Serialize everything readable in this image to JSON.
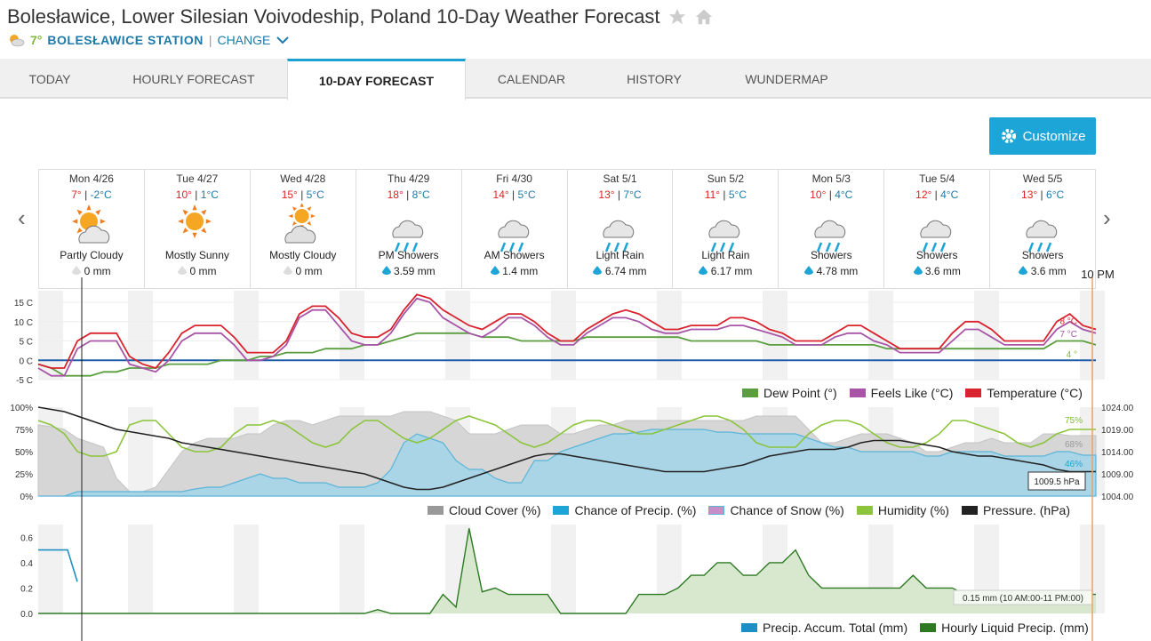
{
  "header": {
    "title": "Bolesławice, Lower Silesian Voivodeship, Poland 10-Day Weather Forecast",
    "current_temp": "7°",
    "station": "BOLESŁAWICE STATION",
    "separator": "|",
    "change": "CHANGE"
  },
  "tabs": [
    {
      "label": "TODAY"
    },
    {
      "label": "HOURLY FORECAST"
    },
    {
      "label": "10-DAY FORECAST"
    },
    {
      "label": "CALENDAR"
    },
    {
      "label": "HISTORY"
    },
    {
      "label": "WUNDERMAP"
    }
  ],
  "customize_label": "Customize",
  "days": [
    {
      "date": "Mon 4/26",
      "hi": "7°",
      "lo": "-2°C",
      "cond": "Partly Cloudy",
      "precip": "0 mm",
      "icon": "partly-cloudy-icon"
    },
    {
      "date": "Tue 4/27",
      "hi": "10°",
      "lo": "1°C",
      "cond": "Mostly Sunny",
      "precip": "0 mm",
      "icon": "sunny-icon"
    },
    {
      "date": "Wed 4/28",
      "hi": "15°",
      "lo": "5°C",
      "cond": "Mostly Cloudy",
      "precip": "0 mm",
      "icon": "mostly-cloudy-icon"
    },
    {
      "date": "Thu 4/29",
      "hi": "18°",
      "lo": "8°C",
      "cond": "PM Showers",
      "precip": "3.59 mm",
      "icon": "rain-icon"
    },
    {
      "date": "Fri 4/30",
      "hi": "14°",
      "lo": "5°C",
      "cond": "AM Showers",
      "precip": "1.4 mm",
      "icon": "rain-icon"
    },
    {
      "date": "Sat 5/1",
      "hi": "13°",
      "lo": "7°C",
      "cond": "Light Rain",
      "precip": "6.74 mm",
      "icon": "rain-icon"
    },
    {
      "date": "Sun 5/2",
      "hi": "11°",
      "lo": "5°C",
      "cond": "Light Rain",
      "precip": "6.17 mm",
      "icon": "rain-icon"
    },
    {
      "date": "Mon 5/3",
      "hi": "10°",
      "lo": "4°C",
      "cond": "Showers",
      "precip": "4.78 mm",
      "icon": "rain-icon"
    },
    {
      "date": "Tue 5/4",
      "hi": "12°",
      "lo": "4°C",
      "cond": "Showers",
      "precip": "3.6 mm",
      "icon": "rain-icon"
    },
    {
      "date": "Wed 5/5",
      "hi": "13°",
      "lo": "6°C",
      "cond": "Showers",
      "precip": "3.6 mm",
      "icon": "rain-icon"
    }
  ],
  "time_marker": "10 PM",
  "colors": {
    "temperature": "#d9232e",
    "feels_like": "#a855a8",
    "dew_point": "#5a9e3f",
    "cloud": "#bbbbbb",
    "precip_chance": "#5db5d8",
    "humidity": "#8cc43c",
    "pressure": "#222222",
    "accum": "#1e8fc4",
    "liquid": "#2d7a23"
  },
  "chart_data": [
    {
      "type": "line",
      "yticks": [
        "15 C",
        "10 C",
        "5 C",
        "0 C",
        "-5 C"
      ],
      "ylim": [
        -5,
        18
      ],
      "series": [
        {
          "name": "Temperature (°C)",
          "values": [
            -1,
            -2,
            -2,
            5,
            7,
            7,
            7,
            1,
            -1,
            -2,
            2,
            7,
            9,
            9,
            9,
            6,
            2,
            2,
            2,
            5,
            12,
            14,
            14,
            11,
            7,
            6,
            6,
            8,
            13,
            17,
            16,
            13,
            11,
            9,
            8,
            10,
            12,
            12,
            10,
            7,
            5,
            5,
            8,
            10,
            12,
            13,
            12,
            10,
            8,
            8,
            9,
            9,
            9,
            11,
            11,
            10,
            8,
            7,
            5,
            5,
            5,
            7,
            9,
            9,
            7,
            5,
            3,
            3,
            3,
            3,
            7,
            10,
            10,
            8,
            5,
            5,
            5,
            5,
            10,
            12,
            9,
            8
          ]
        },
        {
          "name": "Feels Like (°C)",
          "values": [
            -2,
            -4,
            -4,
            3,
            5,
            5,
            5,
            -1,
            -2,
            -3,
            0,
            5,
            7,
            7,
            7,
            4,
            0,
            0,
            1,
            4,
            11,
            13,
            13,
            9,
            5,
            4,
            4,
            7,
            12,
            16,
            15,
            11,
            9,
            7,
            6,
            8,
            11,
            11,
            9,
            6,
            4,
            4,
            7,
            9,
            11,
            11,
            10,
            8,
            7,
            7,
            8,
            8,
            8,
            9,
            9,
            8,
            7,
            6,
            4,
            4,
            4,
            6,
            7,
            7,
            5,
            4,
            2,
            2,
            2,
            2,
            5,
            8,
            8,
            6,
            4,
            4,
            4,
            4,
            8,
            10,
            8,
            7
          ]
        },
        {
          "name": "Dew Point (°)",
          "values": [
            -1,
            -2,
            -4,
            -4,
            -4,
            -3,
            -3,
            -2,
            -2,
            -2,
            -1,
            -1,
            -1,
            -1,
            0,
            0,
            0,
            1,
            1,
            2,
            2,
            2,
            3,
            3,
            3,
            4,
            4,
            5,
            6,
            7,
            7,
            7,
            7,
            7,
            6,
            6,
            6,
            5,
            5,
            5,
            5,
            5,
            6,
            6,
            6,
            6,
            6,
            6,
            6,
            6,
            5,
            5,
            5,
            5,
            5,
            5,
            4,
            4,
            4,
            4,
            4,
            4,
            4,
            4,
            4,
            3,
            3,
            3,
            3,
            3,
            3,
            3,
            3,
            3,
            3,
            3,
            3,
            3,
            5,
            5,
            5,
            4
          ]
        }
      ],
      "end_labels": [
        "8 °C",
        "7 °C",
        "4 °"
      ]
    },
    {
      "type": "area",
      "yticks": [
        "100%",
        "75%",
        "50%",
        "25%",
        "0%"
      ],
      "y2ticks": [
        "1024.00",
        "1019.00",
        "1014.00",
        "1009.00",
        "1004.00"
      ],
      "ylim": [
        0,
        100
      ],
      "y2lim": [
        1004,
        1024
      ],
      "series": [
        {
          "name": "Cloud Cover (%)",
          "values": [
            80,
            78,
            75,
            65,
            60,
            55,
            20,
            5,
            5,
            10,
            30,
            50,
            60,
            65,
            65,
            65,
            70,
            70,
            80,
            85,
            85,
            80,
            85,
            90,
            90,
            90,
            90,
            90,
            95,
            95,
            95,
            90,
            85,
            70,
            70,
            70,
            75,
            80,
            80,
            80,
            70,
            70,
            75,
            80,
            80,
            85,
            85,
            85,
            85,
            85,
            85,
            85,
            85,
            85,
            85,
            90,
            90,
            90,
            90,
            75,
            60,
            60,
            65,
            70,
            70,
            70,
            65,
            60,
            50,
            50,
            55,
            60,
            60,
            65,
            60,
            60,
            60,
            70,
            70,
            68,
            68,
            68
          ]
        },
        {
          "name": "Chance of Precip. (%)",
          "values": [
            0,
            0,
            0,
            5,
            5,
            5,
            5,
            5,
            5,
            5,
            5,
            5,
            8,
            10,
            10,
            15,
            20,
            25,
            20,
            20,
            15,
            15,
            15,
            10,
            10,
            10,
            15,
            30,
            60,
            70,
            65,
            60,
            40,
            30,
            30,
            20,
            15,
            15,
            40,
            40,
            50,
            55,
            60,
            65,
            70,
            70,
            72,
            75,
            75,
            75,
            75,
            75,
            72,
            72,
            70,
            70,
            70,
            70,
            70,
            65,
            60,
            55,
            55,
            50,
            50,
            50,
            50,
            50,
            45,
            45,
            50,
            50,
            50,
            50,
            45,
            45,
            45,
            45,
            50,
            50,
            46,
            46
          ]
        },
        {
          "name": "Chance of Snow (%)",
          "values": []
        },
        {
          "name": "Humidity (%)",
          "values": [
            85,
            80,
            70,
            50,
            45,
            45,
            50,
            80,
            85,
            85,
            70,
            55,
            50,
            50,
            55,
            70,
            80,
            80,
            85,
            80,
            70,
            60,
            55,
            60,
            75,
            85,
            85,
            75,
            65,
            60,
            65,
            75,
            85,
            90,
            85,
            80,
            70,
            60,
            55,
            60,
            70,
            80,
            85,
            85,
            80,
            75,
            70,
            70,
            75,
            80,
            85,
            90,
            90,
            85,
            75,
            60,
            55,
            55,
            55,
            70,
            80,
            85,
            85,
            80,
            70,
            60,
            55,
            55,
            60,
            70,
            85,
            85,
            80,
            75,
            70,
            60,
            55,
            60,
            70,
            75,
            75,
            75
          ]
        },
        {
          "name": "Pressure. (hPa)",
          "values": [
            1024,
            1023.5,
            1023,
            1022,
            1021,
            1020,
            1019,
            1018.5,
            1018,
            1017.5,
            1017,
            1016,
            1015.5,
            1015,
            1014.5,
            1014,
            1013.5,
            1013,
            1012.5,
            1012,
            1011.5,
            1011,
            1010.5,
            1010,
            1009.5,
            1009,
            1008,
            1007,
            1006,
            1005.5,
            1005.5,
            1006,
            1007,
            1008,
            1009,
            1010,
            1011,
            1012,
            1013,
            1013.5,
            1013.5,
            1013,
            1012.5,
            1012,
            1011.5,
            1011,
            1010.5,
            1010,
            1009.5,
            1009.5,
            1009.5,
            1009.5,
            1010,
            1010.5,
            1011,
            1012,
            1013,
            1013.5,
            1014,
            1014.5,
            1014.5,
            1014.5,
            1015,
            1016,
            1016.5,
            1016.5,
            1016.5,
            1016,
            1015.5,
            1015,
            1014,
            1013.5,
            1013,
            1013,
            1012.5,
            1012,
            1011.5,
            1011,
            1010,
            1009.5,
            1009.5,
            1009.5
          ]
        }
      ],
      "end_labels": [
        "75%",
        "68%",
        "46%",
        "1009.5 hPa"
      ]
    },
    {
      "type": "area",
      "yticks": [
        "0.6",
        "0.4",
        "0.2",
        "0.0"
      ],
      "ylim": [
        0,
        0.7
      ],
      "series": [
        {
          "name": "Precip. Accum. Total (mm)",
          "values": [
            0.5,
            0.5,
            0.5,
            0.5,
            0.25
          ]
        },
        {
          "name": "Hourly Liquid Precip. (mm)",
          "values": [
            0,
            0,
            0,
            0,
            0,
            0,
            0,
            0,
            0,
            0,
            0,
            0,
            0,
            0,
            0,
            0,
            0,
            0,
            0,
            0,
            0,
            0,
            0,
            0,
            0,
            0,
            0.03,
            0,
            0,
            0,
            0,
            0.15,
            0.05,
            0.67,
            0.17,
            0.2,
            0.15,
            0.15,
            0.15,
            0.15,
            0,
            0,
            0,
            0,
            0,
            0,
            0.15,
            0.15,
            0.15,
            0.2,
            0.3,
            0.3,
            0.4,
            0.4,
            0.3,
            0.3,
            0.4,
            0.4,
            0.5,
            0.3,
            0.2,
            0.2,
            0.2,
            0.2,
            0.2,
            0.2,
            0.2,
            0.3,
            0.2,
            0.2,
            0.2,
            0.15,
            0.15,
            0.15,
            0.1,
            0.15,
            0.15,
            0.15,
            0.15,
            0.15,
            0.15,
            0.15
          ]
        }
      ],
      "annotation": "0.15 mm (10 AM:00-11 PM:00)"
    }
  ]
}
